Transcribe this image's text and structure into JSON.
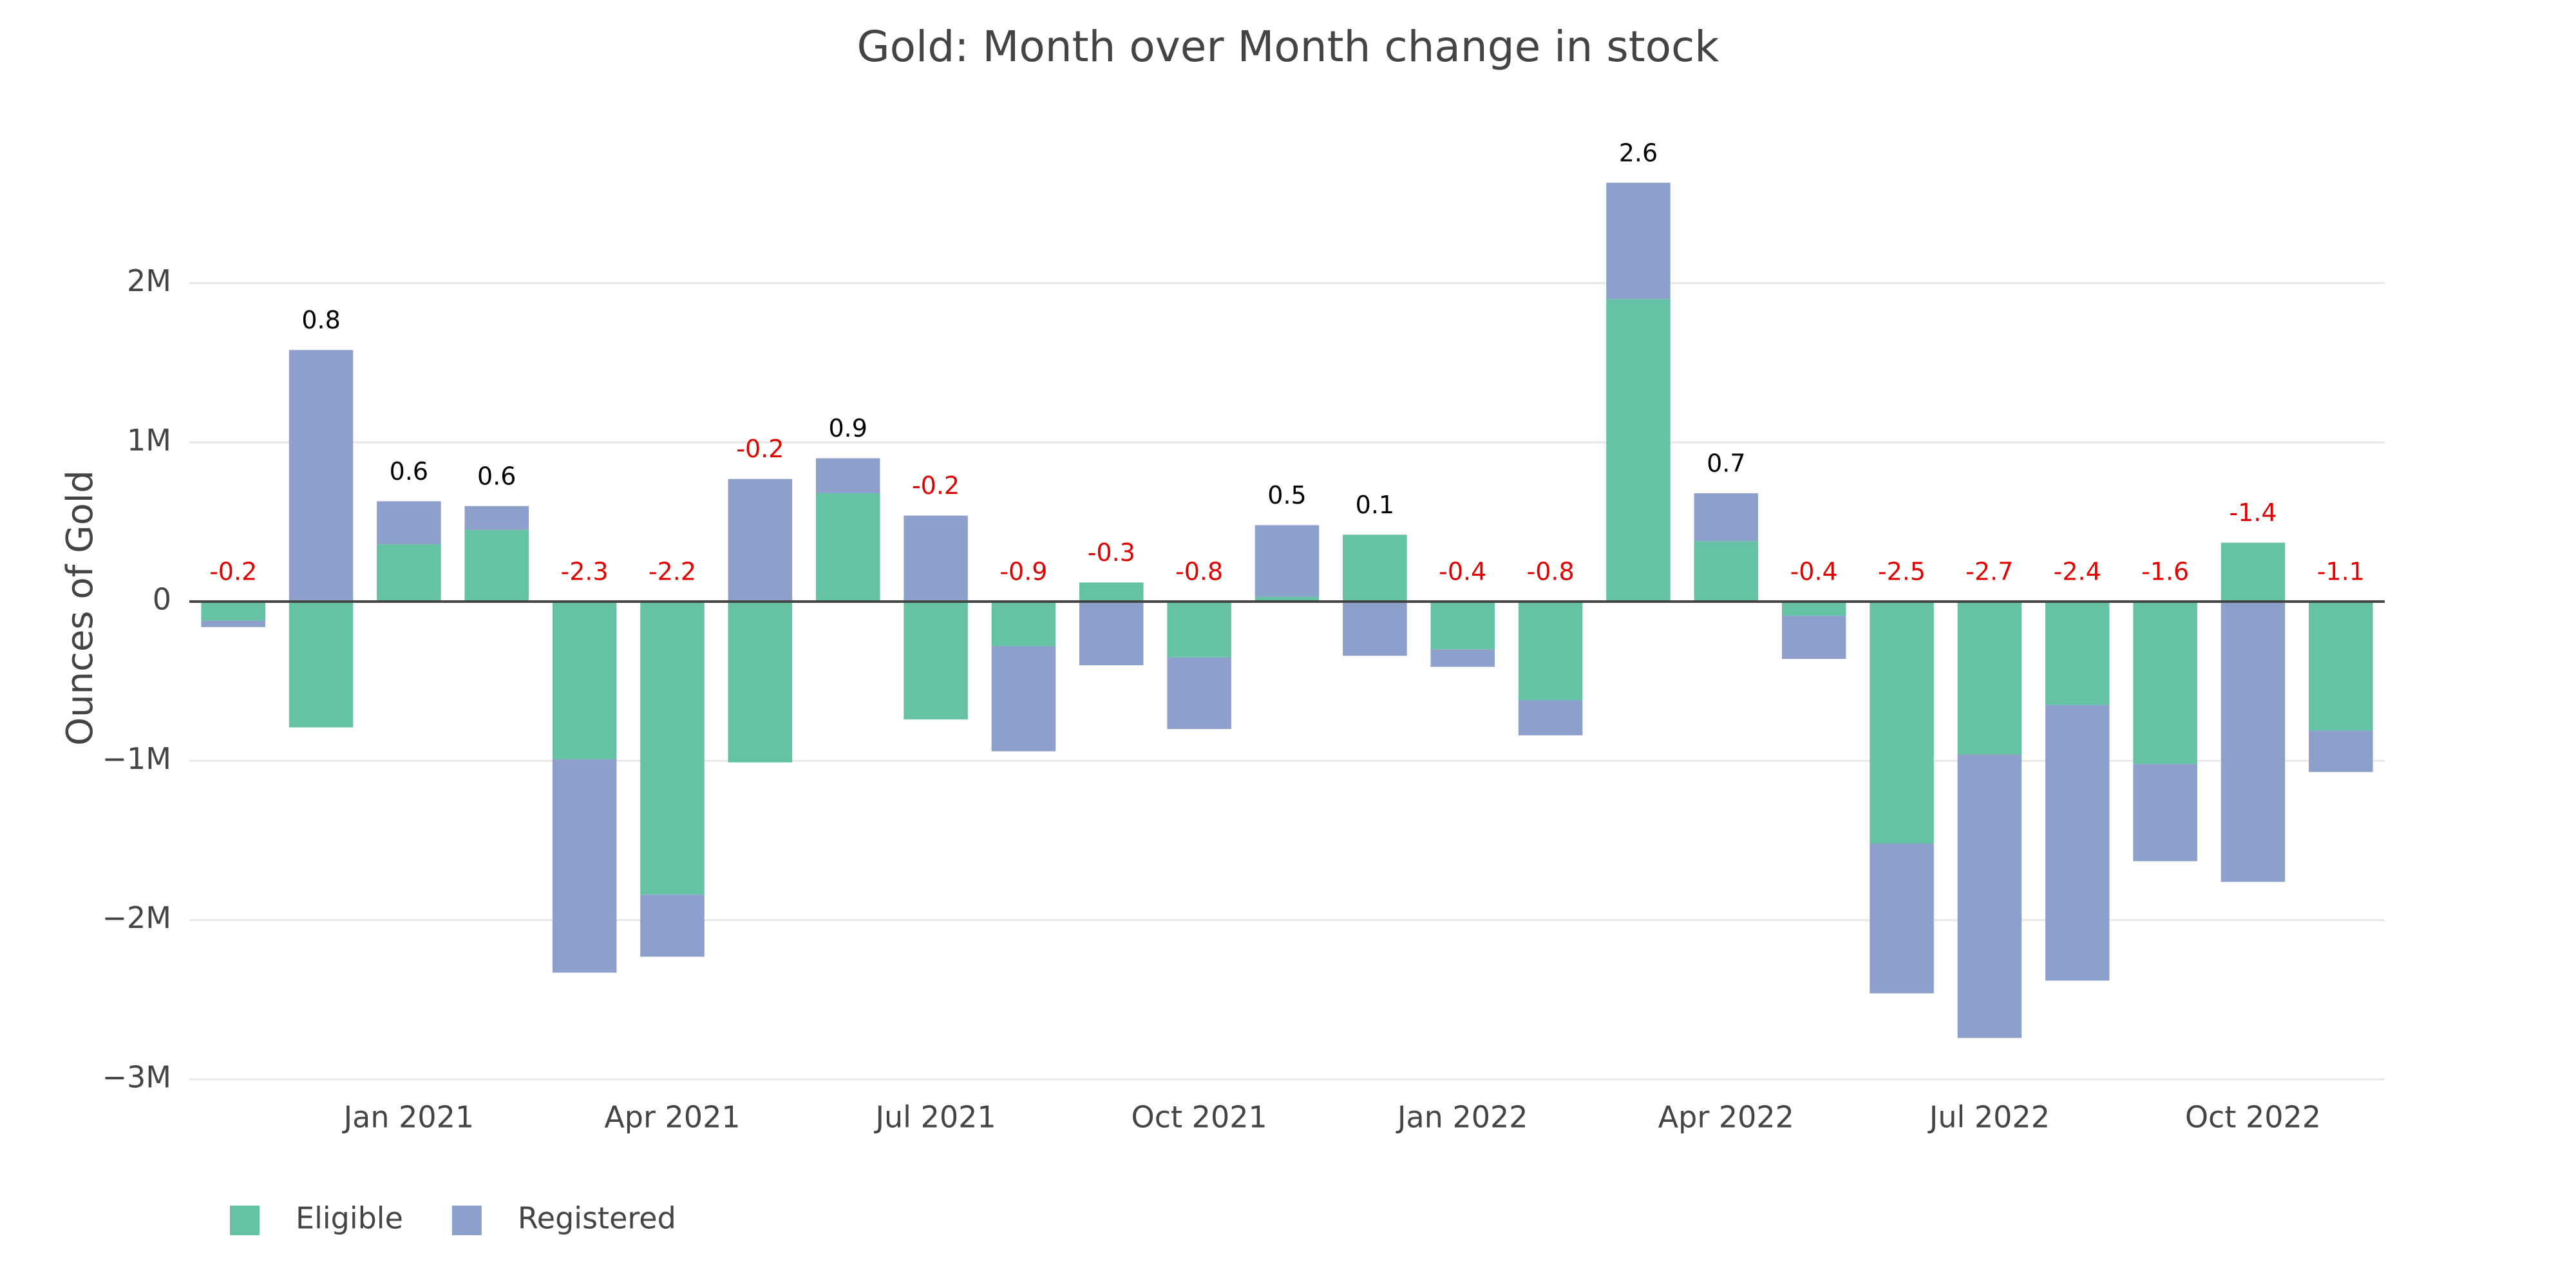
{
  "chart_data": {
    "type": "bar",
    "barmode": "relative",
    "title": "Gold: Month over Month change in stock",
    "y_label": "Ounces of Gold",
    "x": [
      "2020-11",
      "2020-12",
      "2021-01",
      "2021-02",
      "2021-03",
      "2021-04",
      "2021-05",
      "2021-06",
      "2021-07",
      "2021-08",
      "2021-09",
      "2021-10",
      "2021-11",
      "2021-12",
      "2022-01",
      "2022-02",
      "2022-03",
      "2022-04",
      "2022-05",
      "2022-06",
      "2022-07",
      "2022-08",
      "2022-09",
      "2022-10",
      "2022-11"
    ],
    "series": [
      {
        "name": "Eligible",
        "color": "#66c2a5",
        "values": [
          -120000,
          -790000,
          360000,
          450000,
          -990000,
          -1840000,
          -1010000,
          680000,
          -740000,
          -280000,
          120000,
          -350000,
          30000,
          420000,
          -300000,
          -620000,
          1900000,
          380000,
          -90000,
          -1520000,
          -960000,
          -650000,
          -1020000,
          370000,
          -810000
        ]
      },
      {
        "name": "Registered",
        "color": "#8da0cb",
        "values": [
          -40000,
          1580000,
          270000,
          150000,
          -1340000,
          -390000,
          770000,
          220000,
          540000,
          -660000,
          -400000,
          -450000,
          450000,
          -340000,
          -110000,
          -220000,
          730000,
          300000,
          -270000,
          -940000,
          -1780000,
          -1730000,
          -610000,
          -1760000,
          -260000
        ]
      }
    ],
    "total_labels": [
      "-0.2",
      "0.8",
      "0.6",
      "0.6",
      "-2.3",
      "-2.2",
      "-0.2",
      "0.9",
      "-0.2",
      "-0.9",
      "-0.3",
      "-0.8",
      "0.5",
      "0.1",
      "-0.4",
      "-0.8",
      "2.6",
      "0.7",
      "-0.4",
      "-2.5",
      "-2.7",
      "-2.4",
      "-1.6",
      "-1.4",
      "-1.1"
    ],
    "total_label_colors": {
      "positive": "#000000",
      "negative": "#e00000"
    },
    "ylim": [
      -3000000,
      2900000
    ],
    "yticks": [
      {
        "value": -3000000,
        "label": "−3M"
      },
      {
        "value": -2000000,
        "label": "−2M"
      },
      {
        "value": -1000000,
        "label": "−1M"
      },
      0,
      {
        "value": 1000000,
        "label": "1M"
      },
      {
        "value": 2000000,
        "label": "2M"
      }
    ],
    "xticks": [
      {
        "value": "2021-01",
        "label": "Jan 2021"
      },
      {
        "value": "2021-04",
        "label": "Apr 2021"
      },
      {
        "value": "2021-07",
        "label": "Jul 2021"
      },
      {
        "value": "2021-10",
        "label": "Oct 2021"
      },
      {
        "value": "2022-01",
        "label": "Jan 2022"
      },
      {
        "value": "2022-04",
        "label": "Apr 2022"
      },
      {
        "value": "2022-07",
        "label": "Jul 2022"
      },
      {
        "value": "2022-10",
        "label": "Oct 2022"
      }
    ],
    "grid": true,
    "legend": "bottom-left"
  }
}
